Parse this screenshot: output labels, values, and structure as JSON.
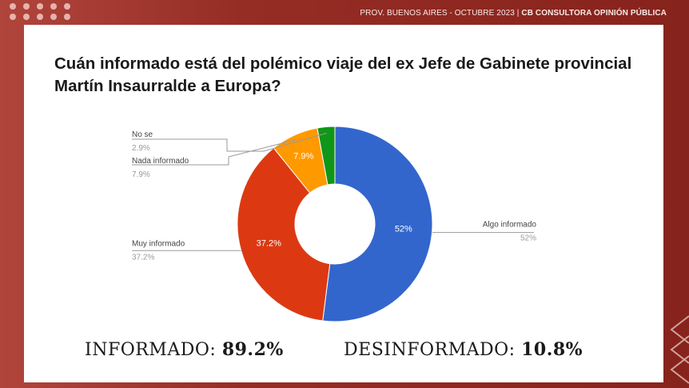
{
  "header": {
    "left": "PROV. BUENOS AIRES - OCTUBRE  2023 |",
    "right": "CB CONSULTORA OPINIÓN PÚBLICA"
  },
  "title": "Cuán informado está del polémico viaje del ex Jefe de Gabinete provincial Martín Insaurralde a Europa?",
  "chart_data": {
    "type": "pie",
    "donut": true,
    "slices": [
      {
        "label": "Algo informado",
        "value": 52,
        "value_label": "52%",
        "color": "#3366cc"
      },
      {
        "label": "Muy informado",
        "value": 37.2,
        "value_label": "37.2%",
        "color": "#dc3912"
      },
      {
        "label": "Nada informado",
        "value": 7.9,
        "value_label": "7.9%",
        "color": "#ff9900"
      },
      {
        "label": "No se",
        "value": 2.9,
        "value_label": "2.9%",
        "color": "#109618"
      }
    ]
  },
  "summary": {
    "informado_label": "INFORMADO:",
    "informado_value": "89.2%",
    "desinformado_label": "DESINFORMADO:",
    "desinformado_value": "10.8%"
  }
}
